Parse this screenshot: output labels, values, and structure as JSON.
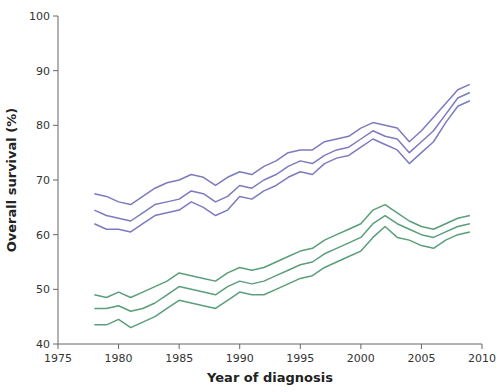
{
  "chart_data": {
    "type": "line",
    "xlabel": "Year of diagnosis",
    "ylabel": "Overall survival (%)",
    "xlim": [
      1975,
      2010
    ],
    "ylim": [
      40,
      100
    ],
    "xticks": [
      1975,
      1980,
      1985,
      1990,
      1995,
      2000,
      2005,
      2010
    ],
    "yticks": [
      40,
      50,
      60,
      70,
      80,
      90,
      100
    ],
    "grid": false,
    "x": [
      1978,
      1979,
      1980,
      1981,
      1982,
      1983,
      1984,
      1985,
      1986,
      1987,
      1988,
      1989,
      1990,
      1991,
      1992,
      1993,
      1994,
      1995,
      1996,
      1997,
      1998,
      1999,
      2000,
      2001,
      2002,
      2003,
      2004,
      2005,
      2006,
      2007,
      2008,
      2009
    ],
    "series": [
      {
        "color": "#7b7bbf",
        "values": [
          67.5,
          67.0,
          66.0,
          65.5,
          67.0,
          68.5,
          69.5,
          70.0,
          71.0,
          70.5,
          69.0,
          70.5,
          71.5,
          71.0,
          72.5,
          73.5,
          75.0,
          75.5,
          75.5,
          77.0,
          77.5,
          78.0,
          79.5,
          80.5,
          80.0,
          79.5,
          77.0,
          79.0,
          81.5,
          84.0,
          86.5,
          87.5
        ]
      },
      {
        "color": "#7b7bbf",
        "values": [
          64.5,
          63.5,
          63.0,
          62.5,
          64.0,
          65.5,
          66.0,
          66.5,
          68.0,
          67.5,
          66.0,
          67.0,
          69.0,
          68.5,
          70.0,
          71.0,
          72.5,
          73.5,
          73.0,
          74.5,
          75.5,
          76.0,
          77.5,
          79.0,
          78.0,
          77.5,
          75.0,
          77.0,
          79.0,
          82.0,
          85.0,
          86.0
        ]
      },
      {
        "color": "#7b7bbf",
        "values": [
          62.0,
          61.0,
          61.0,
          60.5,
          62.0,
          63.5,
          64.0,
          64.5,
          66.0,
          65.0,
          63.5,
          64.5,
          67.0,
          66.5,
          68.0,
          69.0,
          70.5,
          71.5,
          71.0,
          73.0,
          74.0,
          74.5,
          76.0,
          77.5,
          76.5,
          75.5,
          73.0,
          75.0,
          77.0,
          80.5,
          83.5,
          84.5
        ]
      },
      {
        "color": "#5a9e7a",
        "values": [
          49.0,
          48.5,
          49.5,
          48.5,
          49.5,
          50.5,
          51.5,
          53.0,
          52.5,
          52.0,
          51.5,
          53.0,
          54.0,
          53.5,
          54.0,
          55.0,
          56.0,
          57.0,
          57.5,
          59.0,
          60.0,
          61.0,
          62.0,
          64.5,
          65.5,
          64.0,
          62.5,
          61.5,
          61.0,
          62.0,
          63.0,
          63.5
        ]
      },
      {
        "color": "#5a9e7a",
        "values": [
          46.5,
          46.5,
          47.0,
          46.0,
          46.5,
          47.5,
          49.0,
          50.5,
          50.0,
          49.5,
          49.0,
          50.5,
          51.5,
          51.0,
          51.5,
          52.5,
          53.5,
          54.5,
          55.0,
          56.5,
          57.5,
          58.5,
          59.5,
          62.0,
          63.5,
          62.0,
          61.0,
          60.0,
          59.5,
          60.5,
          61.5,
          62.0
        ]
      },
      {
        "color": "#5a9e7a",
        "values": [
          43.5,
          43.5,
          44.5,
          43.0,
          44.0,
          45.0,
          46.5,
          48.0,
          47.5,
          47.0,
          46.5,
          48.0,
          49.5,
          49.0,
          49.0,
          50.0,
          51.0,
          52.0,
          52.5,
          54.0,
          55.0,
          56.0,
          57.0,
          59.5,
          61.5,
          59.5,
          59.0,
          58.0,
          57.5,
          59.0,
          60.0,
          60.5
        ]
      }
    ]
  }
}
